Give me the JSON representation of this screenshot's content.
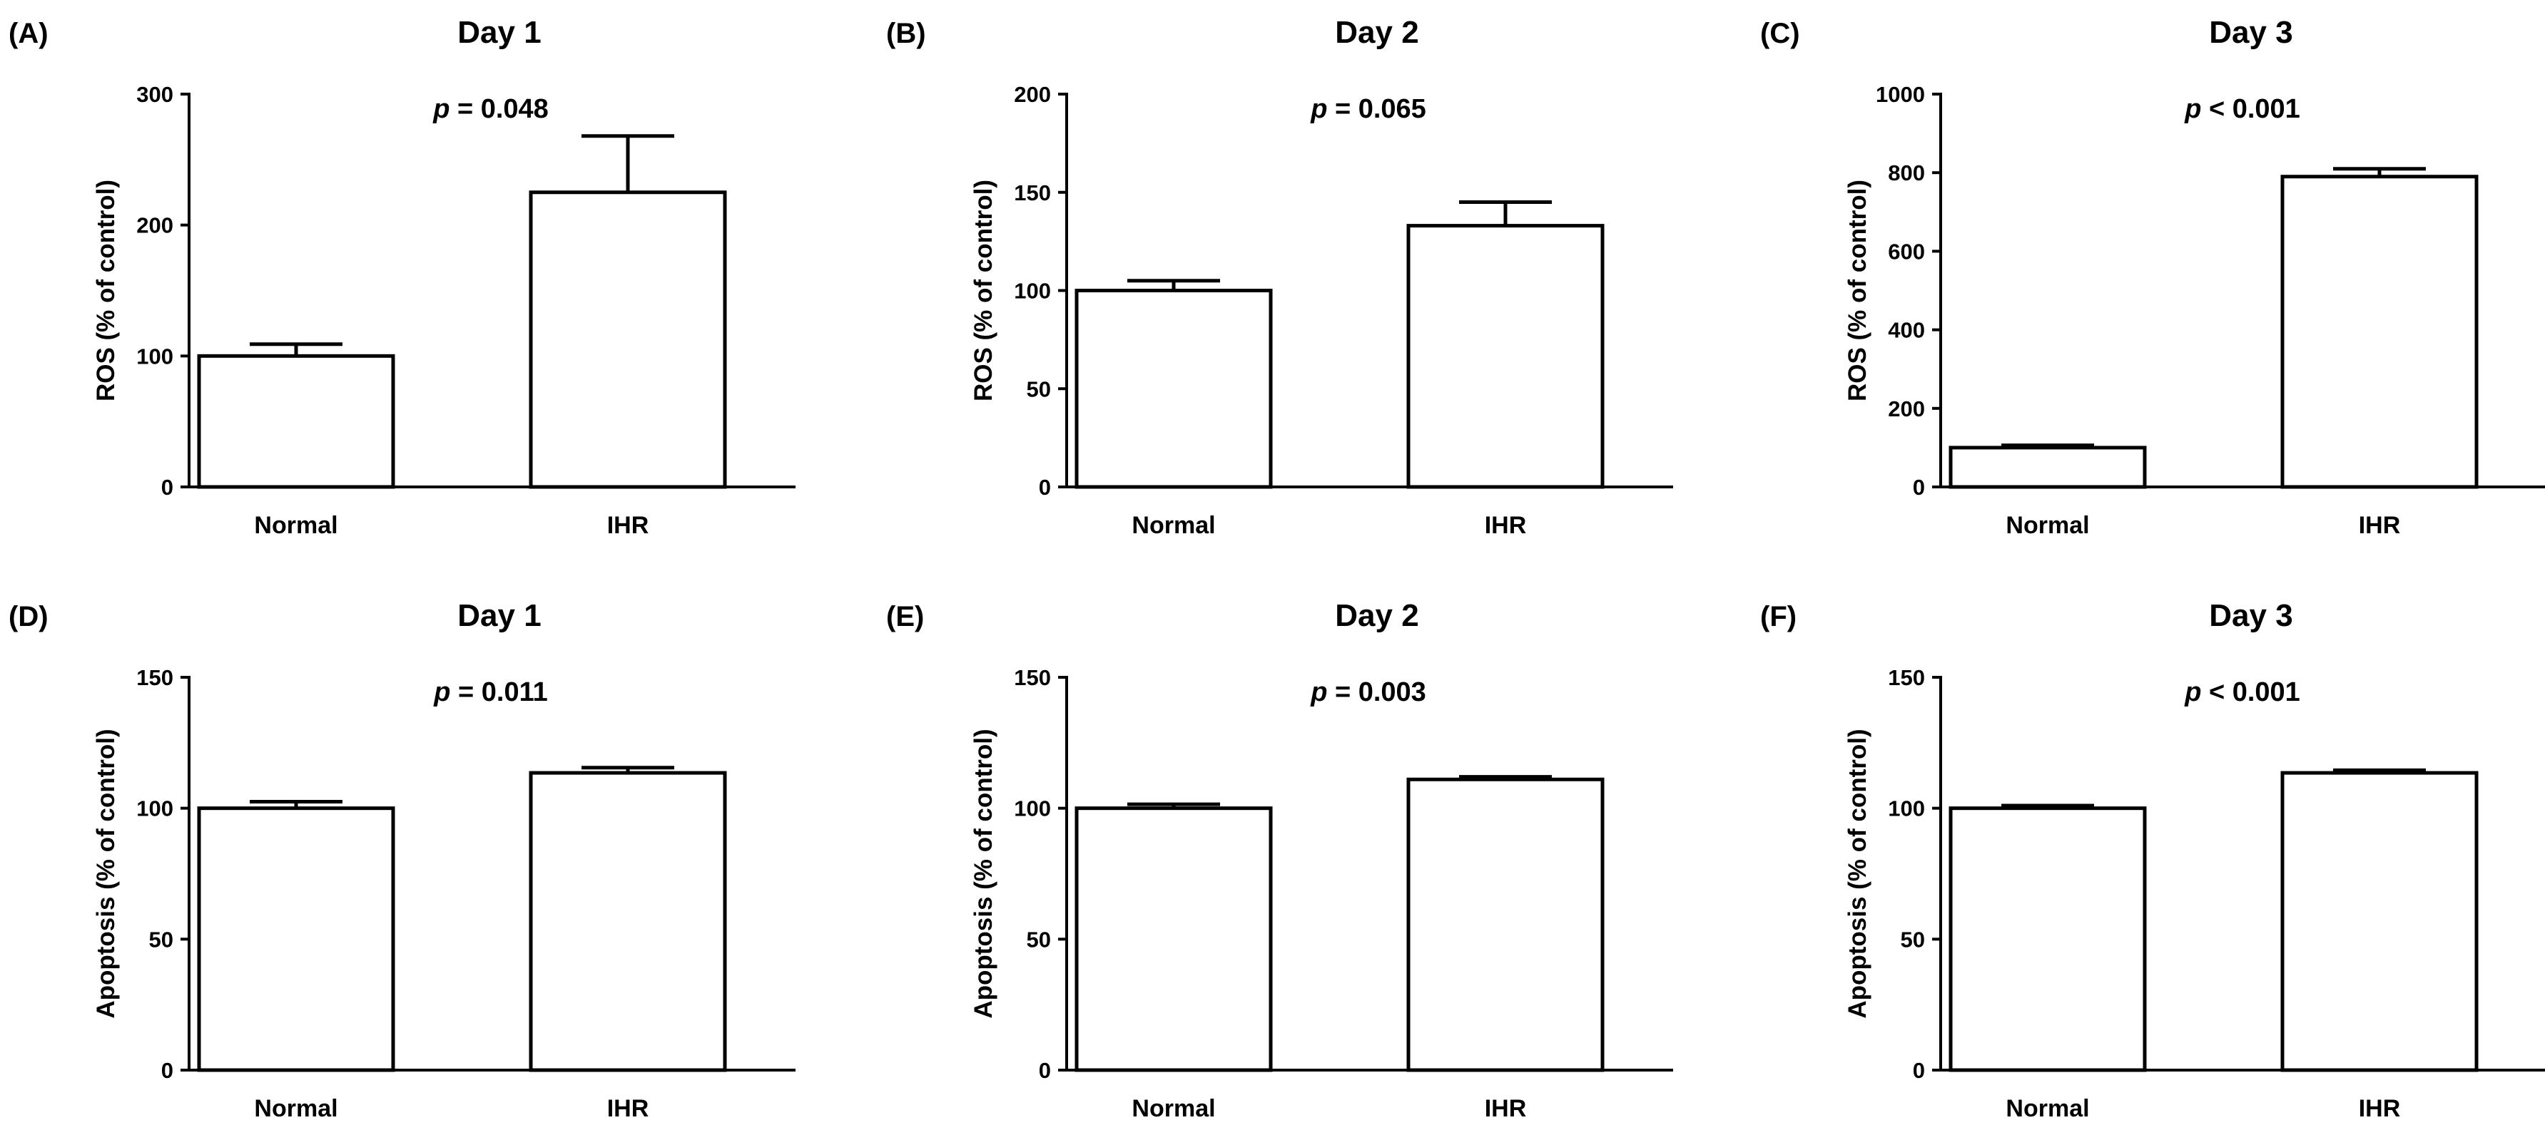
{
  "chart_data": [
    {
      "panel": "(A)",
      "type": "bar",
      "title": "Day 1",
      "p_prefix": "p",
      "p_text": " = 0.048",
      "ylabel": "ROS (% of control)",
      "categories": [
        "Normal",
        "IHR"
      ],
      "values": [
        100,
        225
      ],
      "errors": [
        9,
        43
      ],
      "ylim": [
        0,
        300
      ],
      "yticks": [
        0,
        100,
        200,
        300
      ]
    },
    {
      "panel": "(B)",
      "type": "bar",
      "title": "Day 2",
      "p_prefix": "p",
      "p_text": " = 0.065",
      "ylabel": "ROS (% of control)",
      "categories": [
        "Normal",
        "IHR"
      ],
      "values": [
        100,
        133
      ],
      "errors": [
        5,
        12
      ],
      "ylim": [
        0,
        200
      ],
      "yticks": [
        0,
        50,
        100,
        150,
        200
      ]
    },
    {
      "panel": "(C)",
      "type": "bar",
      "title": "Day 3",
      "p_prefix": "p",
      "p_text": " < 0.001",
      "ylabel": "ROS (% of control)",
      "categories": [
        "Normal",
        "IHR"
      ],
      "values": [
        100,
        790
      ],
      "errors": [
        6,
        20
      ],
      "ylim": [
        0,
        1000
      ],
      "yticks": [
        0,
        200,
        400,
        600,
        800,
        1000
      ]
    },
    {
      "panel": "(D)",
      "type": "bar",
      "title": "Day 1",
      "p_prefix": "p",
      "p_text": " = 0.011",
      "ylabel": "Apoptosis (% of control)",
      "categories": [
        "Normal",
        "IHR"
      ],
      "values": [
        100,
        113.5
      ],
      "errors": [
        2.5,
        2
      ],
      "ylim": [
        0,
        150
      ],
      "yticks": [
        0,
        50,
        100,
        150
      ]
    },
    {
      "panel": "(E)",
      "type": "bar",
      "title": "Day 2",
      "p_prefix": "p",
      "p_text": " = 0.003",
      "ylabel": "Apoptosis (% of control)",
      "categories": [
        "Normal",
        "IHR"
      ],
      "values": [
        100,
        111
      ],
      "errors": [
        1.5,
        1
      ],
      "ylim": [
        0,
        150
      ],
      "yticks": [
        0,
        50,
        100,
        150
      ]
    },
    {
      "panel": "(F)",
      "type": "bar",
      "title": "Day 3",
      "p_prefix": "p",
      "p_text": " < 0.001",
      "ylabel": "Apoptosis (% of control)",
      "categories": [
        "Normal",
        "IHR"
      ],
      "values": [
        100,
        113.5
      ],
      "errors": [
        1,
        1
      ],
      "ylim": [
        0,
        150
      ],
      "yticks": [
        0,
        50,
        100,
        150
      ]
    }
  ]
}
